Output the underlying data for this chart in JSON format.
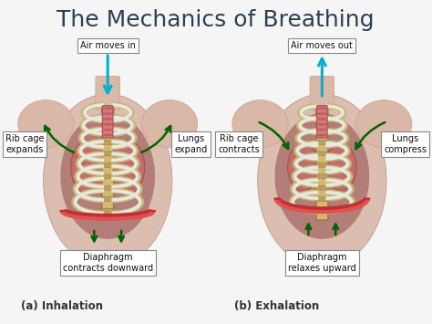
{
  "title": "The Mechanics of Breathing",
  "title_fontsize": 18,
  "title_color": "#2d3f50",
  "background_color": "#f5f5f5",
  "label_a": "(a) Inhalation",
  "label_b": "(b) Exhalation",
  "label_fontsize": 8.5,
  "skin_light": "#d9b8a8",
  "skin_mid": "#c8a090",
  "skin_dark": "#b08878",
  "spine_color": "#b8a060",
  "rib_bone": "#c8b878",
  "rib_white": "#e8e8e0",
  "rib_shadow": "#a09050",
  "lung_pink": "#c86868",
  "lung_red": "#a84040",
  "diaphragm_red": "#c03030",
  "trachea_pink": "#d87878",
  "trachea_ring": "#b05858",
  "green_dark": "#006400",
  "blue_arrow": "#00b0d0",
  "label_box_bg": "#ffffff",
  "label_box_edge": "#888888",
  "label_text": "#111111"
}
